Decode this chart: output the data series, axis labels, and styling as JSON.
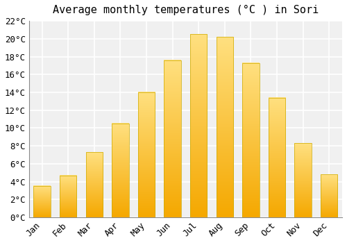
{
  "title": "Average monthly temperatures (°C ) in Sori",
  "months": [
    "Jan",
    "Feb",
    "Mar",
    "Apr",
    "May",
    "Jun",
    "Jul",
    "Aug",
    "Sep",
    "Oct",
    "Nov",
    "Dec"
  ],
  "values": [
    3.5,
    4.7,
    7.3,
    10.5,
    14.0,
    17.6,
    20.5,
    20.2,
    17.3,
    13.4,
    8.3,
    4.8
  ],
  "bar_color_bottom": "#F5A800",
  "bar_color_top": "#FFE080",
  "ylim": [
    0,
    22
  ],
  "ytick_step": 2,
  "background_color": "#FFFFFF",
  "plot_bg_color": "#F0F0F0",
  "grid_color": "#FFFFFF",
  "title_fontsize": 11,
  "tick_fontsize": 9,
  "font_family": "monospace"
}
